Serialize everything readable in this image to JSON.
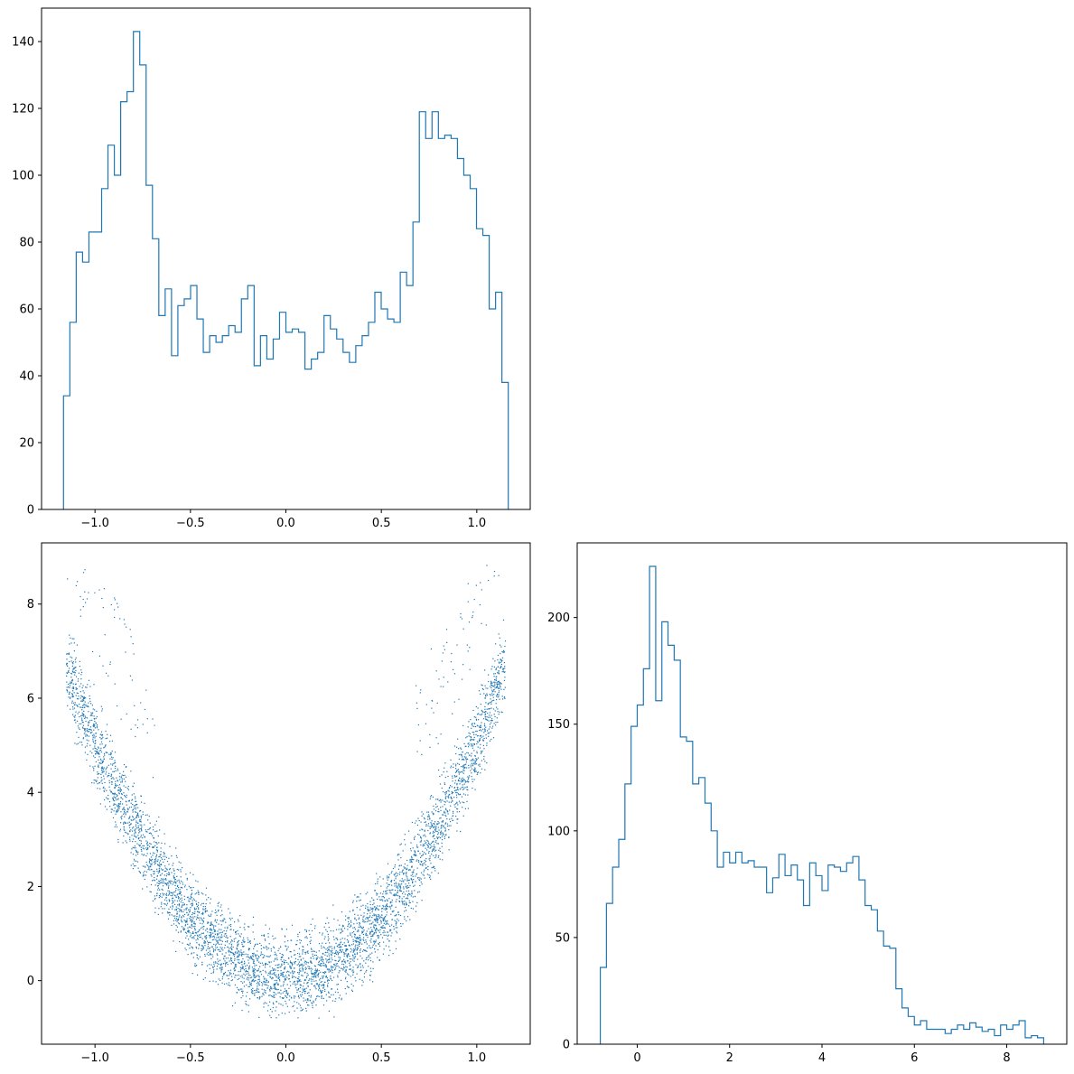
{
  "chart_data": [
    {
      "id": "hist-x",
      "type": "histogram",
      "grid": false,
      "xlim": [
        -1.28,
        1.28
      ],
      "ylim": [
        0,
        150
      ],
      "xticks": [
        -1.0,
        -0.5,
        0.0,
        0.5,
        1.0
      ],
      "xtick_labels": [
        "−1.0",
        "−0.5",
        "0.0",
        "0.5",
        "1.0"
      ],
      "yticks": [
        0,
        20,
        40,
        60,
        80,
        100,
        120,
        140
      ],
      "ytick_labels": [
        "0",
        "20",
        "40",
        "60",
        "80",
        "100",
        "120",
        "140"
      ],
      "bin_range": [
        -1.165,
        1.165
      ],
      "counts": [
        34,
        56,
        77,
        74,
        83,
        83,
        96,
        109,
        100,
        122,
        125,
        143,
        133,
        97,
        81,
        58,
        66,
        46,
        61,
        63,
        67,
        57,
        47,
        52,
        50,
        52,
        55,
        53,
        63,
        67,
        43,
        52,
        45,
        51,
        59,
        53,
        54,
        53,
        42,
        45,
        47,
        58,
        54,
        51,
        47,
        44,
        49,
        52,
        56,
        65,
        60,
        57,
        56,
        71,
        67,
        86,
        119,
        111,
        119,
        111,
        112,
        111,
        105,
        100,
        96,
        84,
        82,
        60,
        65,
        38
      ]
    },
    {
      "id": "scatter-xy",
      "type": "scatter",
      "grid": false,
      "xlim": [
        -1.28,
        1.28
      ],
      "ylim": [
        -1.35,
        9.3
      ],
      "xticks": [
        -1.0,
        -0.5,
        0.0,
        0.5,
        1.0
      ],
      "xtick_labels": [
        "−1.0",
        "−0.5",
        "0.0",
        "0.5",
        "1.0"
      ],
      "yticks": [
        0,
        2,
        4,
        6,
        8
      ],
      "ytick_labels": [
        "0",
        "2",
        "4",
        "6",
        "8"
      ],
      "point_count": 5000,
      "shape": "U-shaped band, y ≈ 5x² with spread, x in [-1.15, 1.15], y from about -0.8 to 8.8"
    },
    {
      "id": "hist-y",
      "type": "histogram",
      "grid": false,
      "xlim": [
        -1.3,
        9.3
      ],
      "ylim": [
        0,
        235
      ],
      "xticks": [
        0,
        2,
        4,
        6,
        8
      ],
      "xtick_labels": [
        "0",
        "2",
        "4",
        "6",
        "8"
      ],
      "yticks": [
        0,
        50,
        100,
        150,
        200
      ],
      "ytick_labels": [
        "0",
        "50",
        "100",
        "150",
        "200"
      ],
      "bin_range": [
        -0.8,
        8.8
      ],
      "counts": [
        36,
        66,
        83,
        96,
        122,
        149,
        159,
        176,
        224,
        161,
        198,
        187,
        180,
        144,
        142,
        122,
        125,
        113,
        100,
        83,
        90,
        85,
        90,
        85,
        86,
        83,
        83,
        71,
        78,
        89,
        79,
        84,
        77,
        65,
        85,
        79,
        72,
        84,
        83,
        81,
        85,
        88,
        77,
        65,
        63,
        53,
        46,
        45,
        26,
        17,
        13,
        9,
        11,
        7,
        7,
        7,
        5,
        7,
        9,
        7,
        10,
        8,
        6,
        7,
        4,
        9,
        7,
        9,
        11,
        3,
        4,
        3
      ]
    }
  ]
}
